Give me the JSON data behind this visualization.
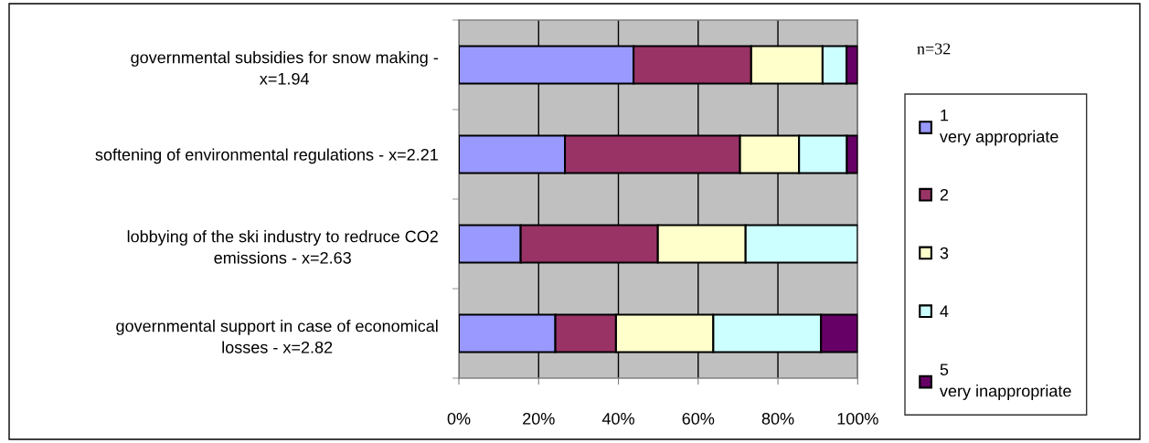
{
  "chart_data": {
    "type": "bar",
    "orientation": "horizontal",
    "stacked": true,
    "categories": [
      "governmental subsidies for snow making -\nx=1.94",
      "softening of environmental regulations - x=2.21",
      "lobbying of the ski industry to redruce CO2\nemissions - x=2.63",
      "governmental support in case of economical\nlosses - x=2.82"
    ],
    "series": [
      {
        "name": "1\nvery appropriate",
        "color": "#9999ff",
        "values": [
          43.8,
          26.6,
          15.5,
          24.2
        ]
      },
      {
        "name": "2",
        "color": "#993366",
        "values": [
          29.5,
          43.9,
          34.4,
          15.2
        ]
      },
      {
        "name": "3",
        "color": "#ffffcc",
        "values": [
          17.9,
          14.8,
          22.0,
          24.4
        ]
      },
      {
        "name": "4",
        "color": "#ccffff",
        "values": [
          6.0,
          12.0,
          28.1,
          27.0
        ]
      },
      {
        "name": "5\nvery inappropriate",
        "color": "#660066",
        "values": [
          2.8,
          2.7,
          null,
          9.2
        ]
      }
    ],
    "xlim": [
      0,
      100
    ],
    "xticks": [
      {
        "value": 0,
        "label": "0%"
      },
      {
        "value": 20,
        "label": "20%"
      },
      {
        "value": 40,
        "label": "40%"
      },
      {
        "value": 60,
        "label": "60%"
      },
      {
        "value": 80,
        "label": "80%"
      },
      {
        "value": 100,
        "label": "100%"
      }
    ],
    "grid": "x",
    "legend": "right",
    "annotations": [
      "n=32"
    ]
  }
}
